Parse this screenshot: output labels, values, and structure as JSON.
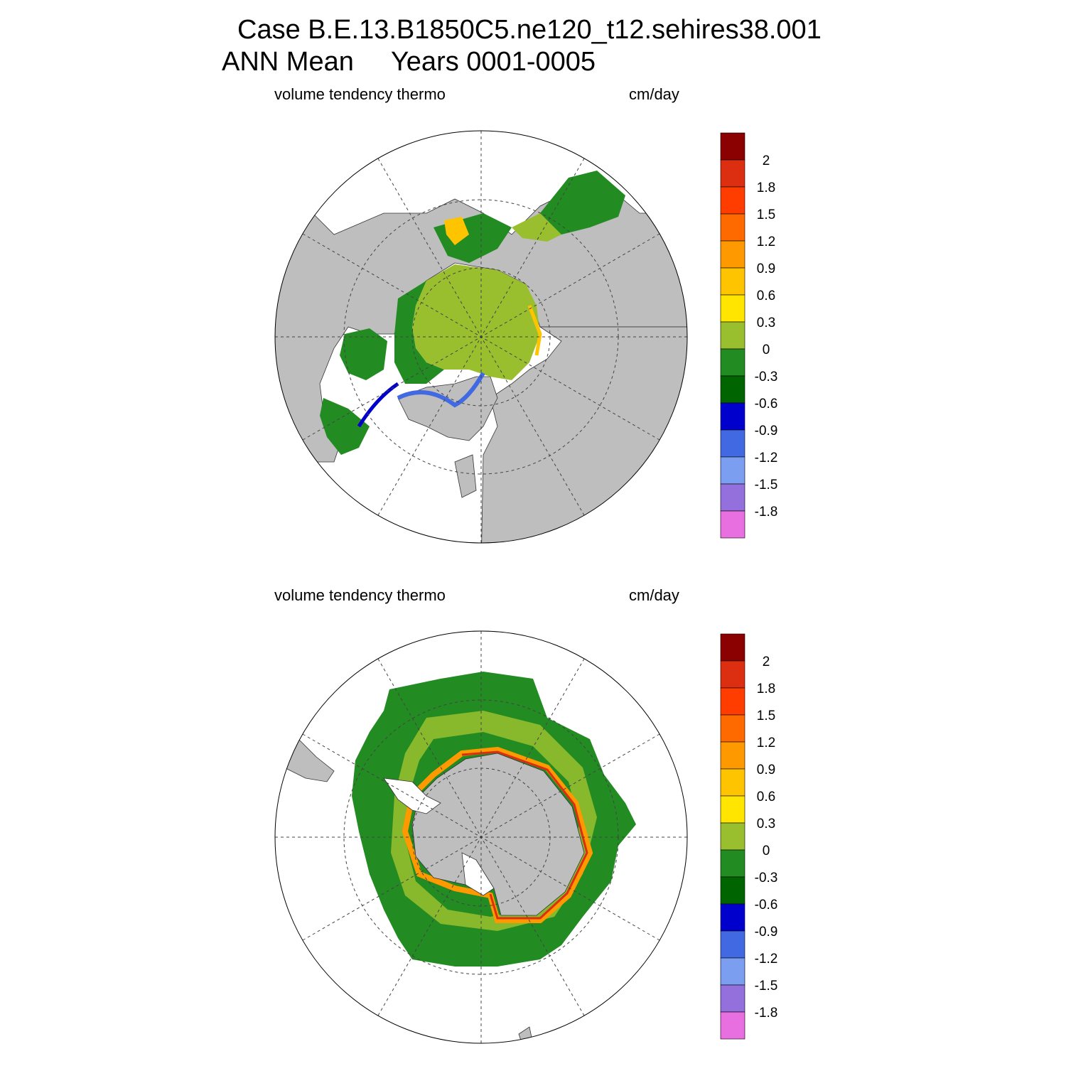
{
  "title": {
    "line1": "Case B.E.13.B1850C5.ne120_t12.sehires38.001",
    "line2": "ANN Mean     Years 0001-0005"
  },
  "colorbar": {
    "labels": [
      "2",
      "1.8",
      "1.5",
      "1.2",
      "0.9",
      "0.6",
      "0.3",
      "0",
      "-0.3",
      "-0.6",
      "-0.9",
      "-1.2",
      "-1.5",
      "-1.8"
    ],
    "colors": [
      "#8b0000",
      "#dc2f12",
      "#ff3d00",
      "#ff6a00",
      "#ff9900",
      "#ffc400",
      "#ffe500",
      "#9abf2e",
      "#228b22",
      "#006400",
      "#0000cd",
      "#4169e1",
      "#7b9ef0",
      "#9370db",
      "#e86fe0"
    ]
  },
  "panels": [
    {
      "id": "north",
      "variable": "volume tendency thermo",
      "units": "cm/day"
    },
    {
      "id": "south",
      "variable": "volume tendency thermo",
      "units": "cm/day"
    }
  ],
  "colors": {
    "land": "#bebebe",
    "ocean": "#ffffff",
    "grid": "#444444"
  }
}
